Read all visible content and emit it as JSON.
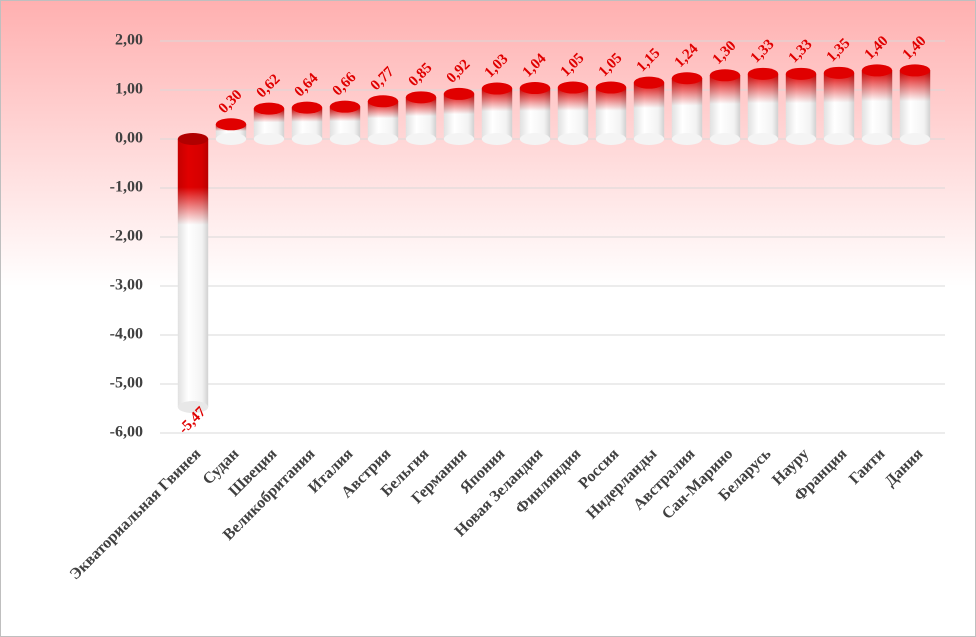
{
  "chart_data": {
    "type": "bar",
    "categories": [
      "Экваториальная Гвинея",
      "Судан",
      "Швеция",
      "Великобритания",
      "Италия",
      "Австрия",
      "Бельгия",
      "Германия",
      "Япония",
      "Новая Зеландия",
      "Финляндия",
      "Россия",
      "Нидерланды",
      "Австралия",
      "Сан-Марино",
      "Беларусь",
      "Науру",
      "Франция",
      "Гаити",
      "Дания"
    ],
    "values": [
      -5.47,
      0.3,
      0.62,
      0.64,
      0.66,
      0.77,
      0.85,
      0.92,
      1.03,
      1.04,
      1.05,
      1.05,
      1.15,
      1.24,
      1.3,
      1.33,
      1.33,
      1.35,
      1.4,
      1.4
    ],
    "value_labels": [
      "-5,47",
      "0,30",
      "0,62",
      "0,64",
      "0,66",
      "0,77",
      "0,85",
      "0,92",
      "1,03",
      "1,04",
      "1,05",
      "1,05",
      "1,15",
      "1,24",
      "1,30",
      "1,33",
      "1,33",
      "1,35",
      "1,40",
      "1,40"
    ],
    "color": "#e00000",
    "ylim": [
      -6,
      2
    ],
    "yticks": [
      {
        "value": -6,
        "label": "-6,00"
      },
      {
        "value": -5,
        "label": "-5,00"
      },
      {
        "value": -4,
        "label": "-4,00"
      },
      {
        "value": -3,
        "label": "-3,00"
      },
      {
        "value": -2,
        "label": "-2,00"
      },
      {
        "value": -1,
        "label": "-1,00"
      },
      {
        "value": 0,
        "label": "0,00"
      },
      {
        "value": 1,
        "label": "1,00"
      },
      {
        "value": 2,
        "label": "2,00"
      }
    ],
    "grid": true
  }
}
